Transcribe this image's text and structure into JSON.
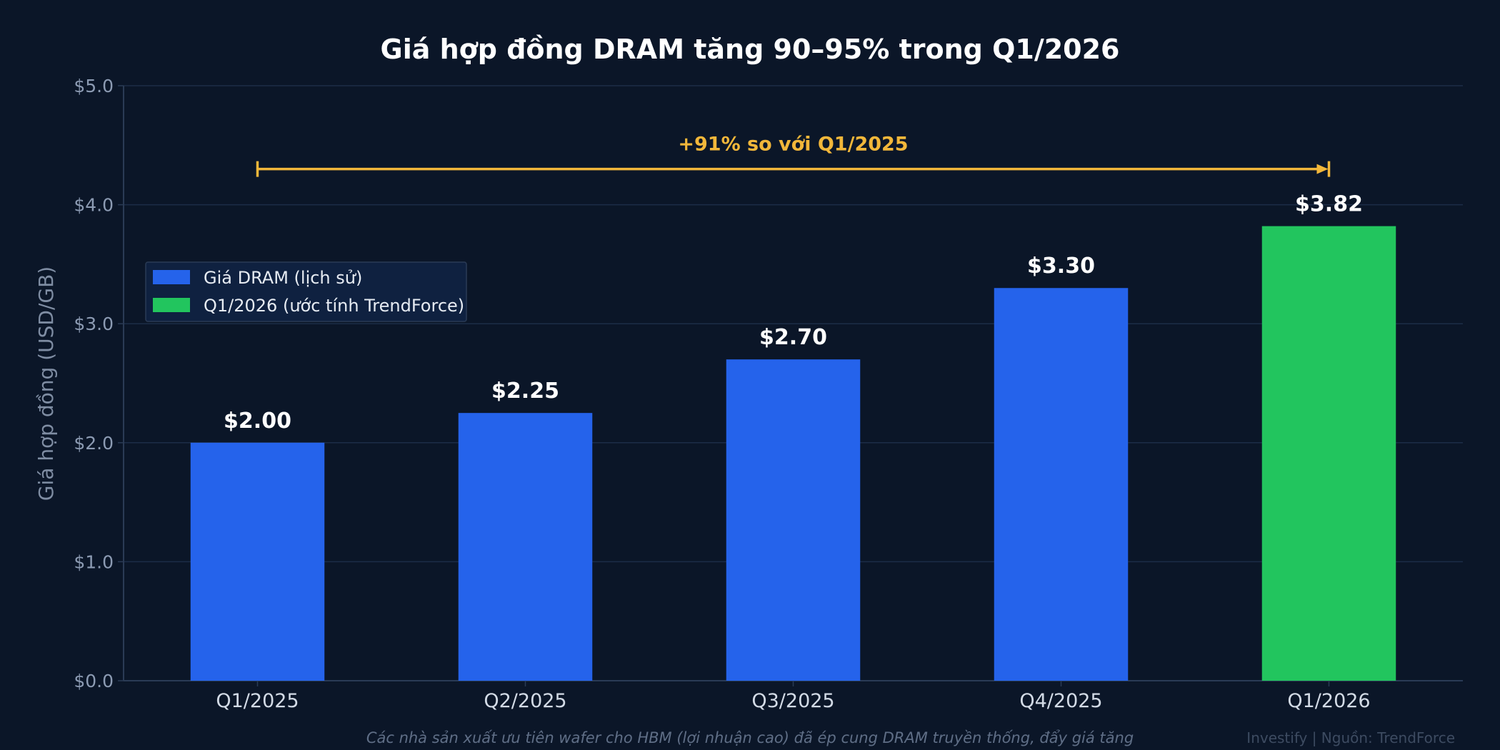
{
  "chart_data": {
    "type": "bar",
    "title": "Giá hợp đồng DRAM tăng 90–95% trong Q1/2026",
    "xlabel": "",
    "ylabel": "Giá hợp đồng (USD/GB)",
    "categories": [
      "Q1/2025",
      "Q2/2025",
      "Q3/2025",
      "Q4/2025",
      "Q1/2026"
    ],
    "series": [
      {
        "name": "Giá DRAM (lịch sử)",
        "values": [
          2.0,
          2.25,
          2.7,
          3.3,
          null
        ],
        "color": "#2563eb"
      },
      {
        "name": "Q1/2026 (ước tính TrendForce)",
        "values": [
          null,
          null,
          null,
          null,
          3.82
        ],
        "color": "#22c55e"
      }
    ],
    "value_labels": [
      "$2.00",
      "$2.25",
      "$2.70",
      "$3.30",
      "$3.82"
    ],
    "ylim": [
      0,
      5
    ],
    "yticks": [
      0,
      1,
      2,
      3,
      4,
      5
    ],
    "ytick_labels": [
      "$0.0",
      "$1.0",
      "$2.0",
      "$3.0",
      "$4.0",
      "$5.0"
    ],
    "grid": "horizontal",
    "legend_position": "upper-left",
    "annotation": {
      "text": "+91% so với Q1/2025",
      "from": "Q1/2025",
      "to": "Q1/2026",
      "y": 4.3,
      "color": "#f2b73a"
    },
    "footnote": "Các nhà sản xuất ưu tiên wafer cho HBM (lợi nhuận cao) đã ép cung DRAM truyền thống, đẩy giá tăng",
    "credit": "Investify | Nguồn: TrendForce"
  },
  "colors": {
    "background": "#0b1628",
    "grid": "#1c2d47",
    "axis": "#2a3b55",
    "history_bar": "#2563eb",
    "forecast_bar": "#22c55e",
    "annotation": "#f2b73a"
  }
}
